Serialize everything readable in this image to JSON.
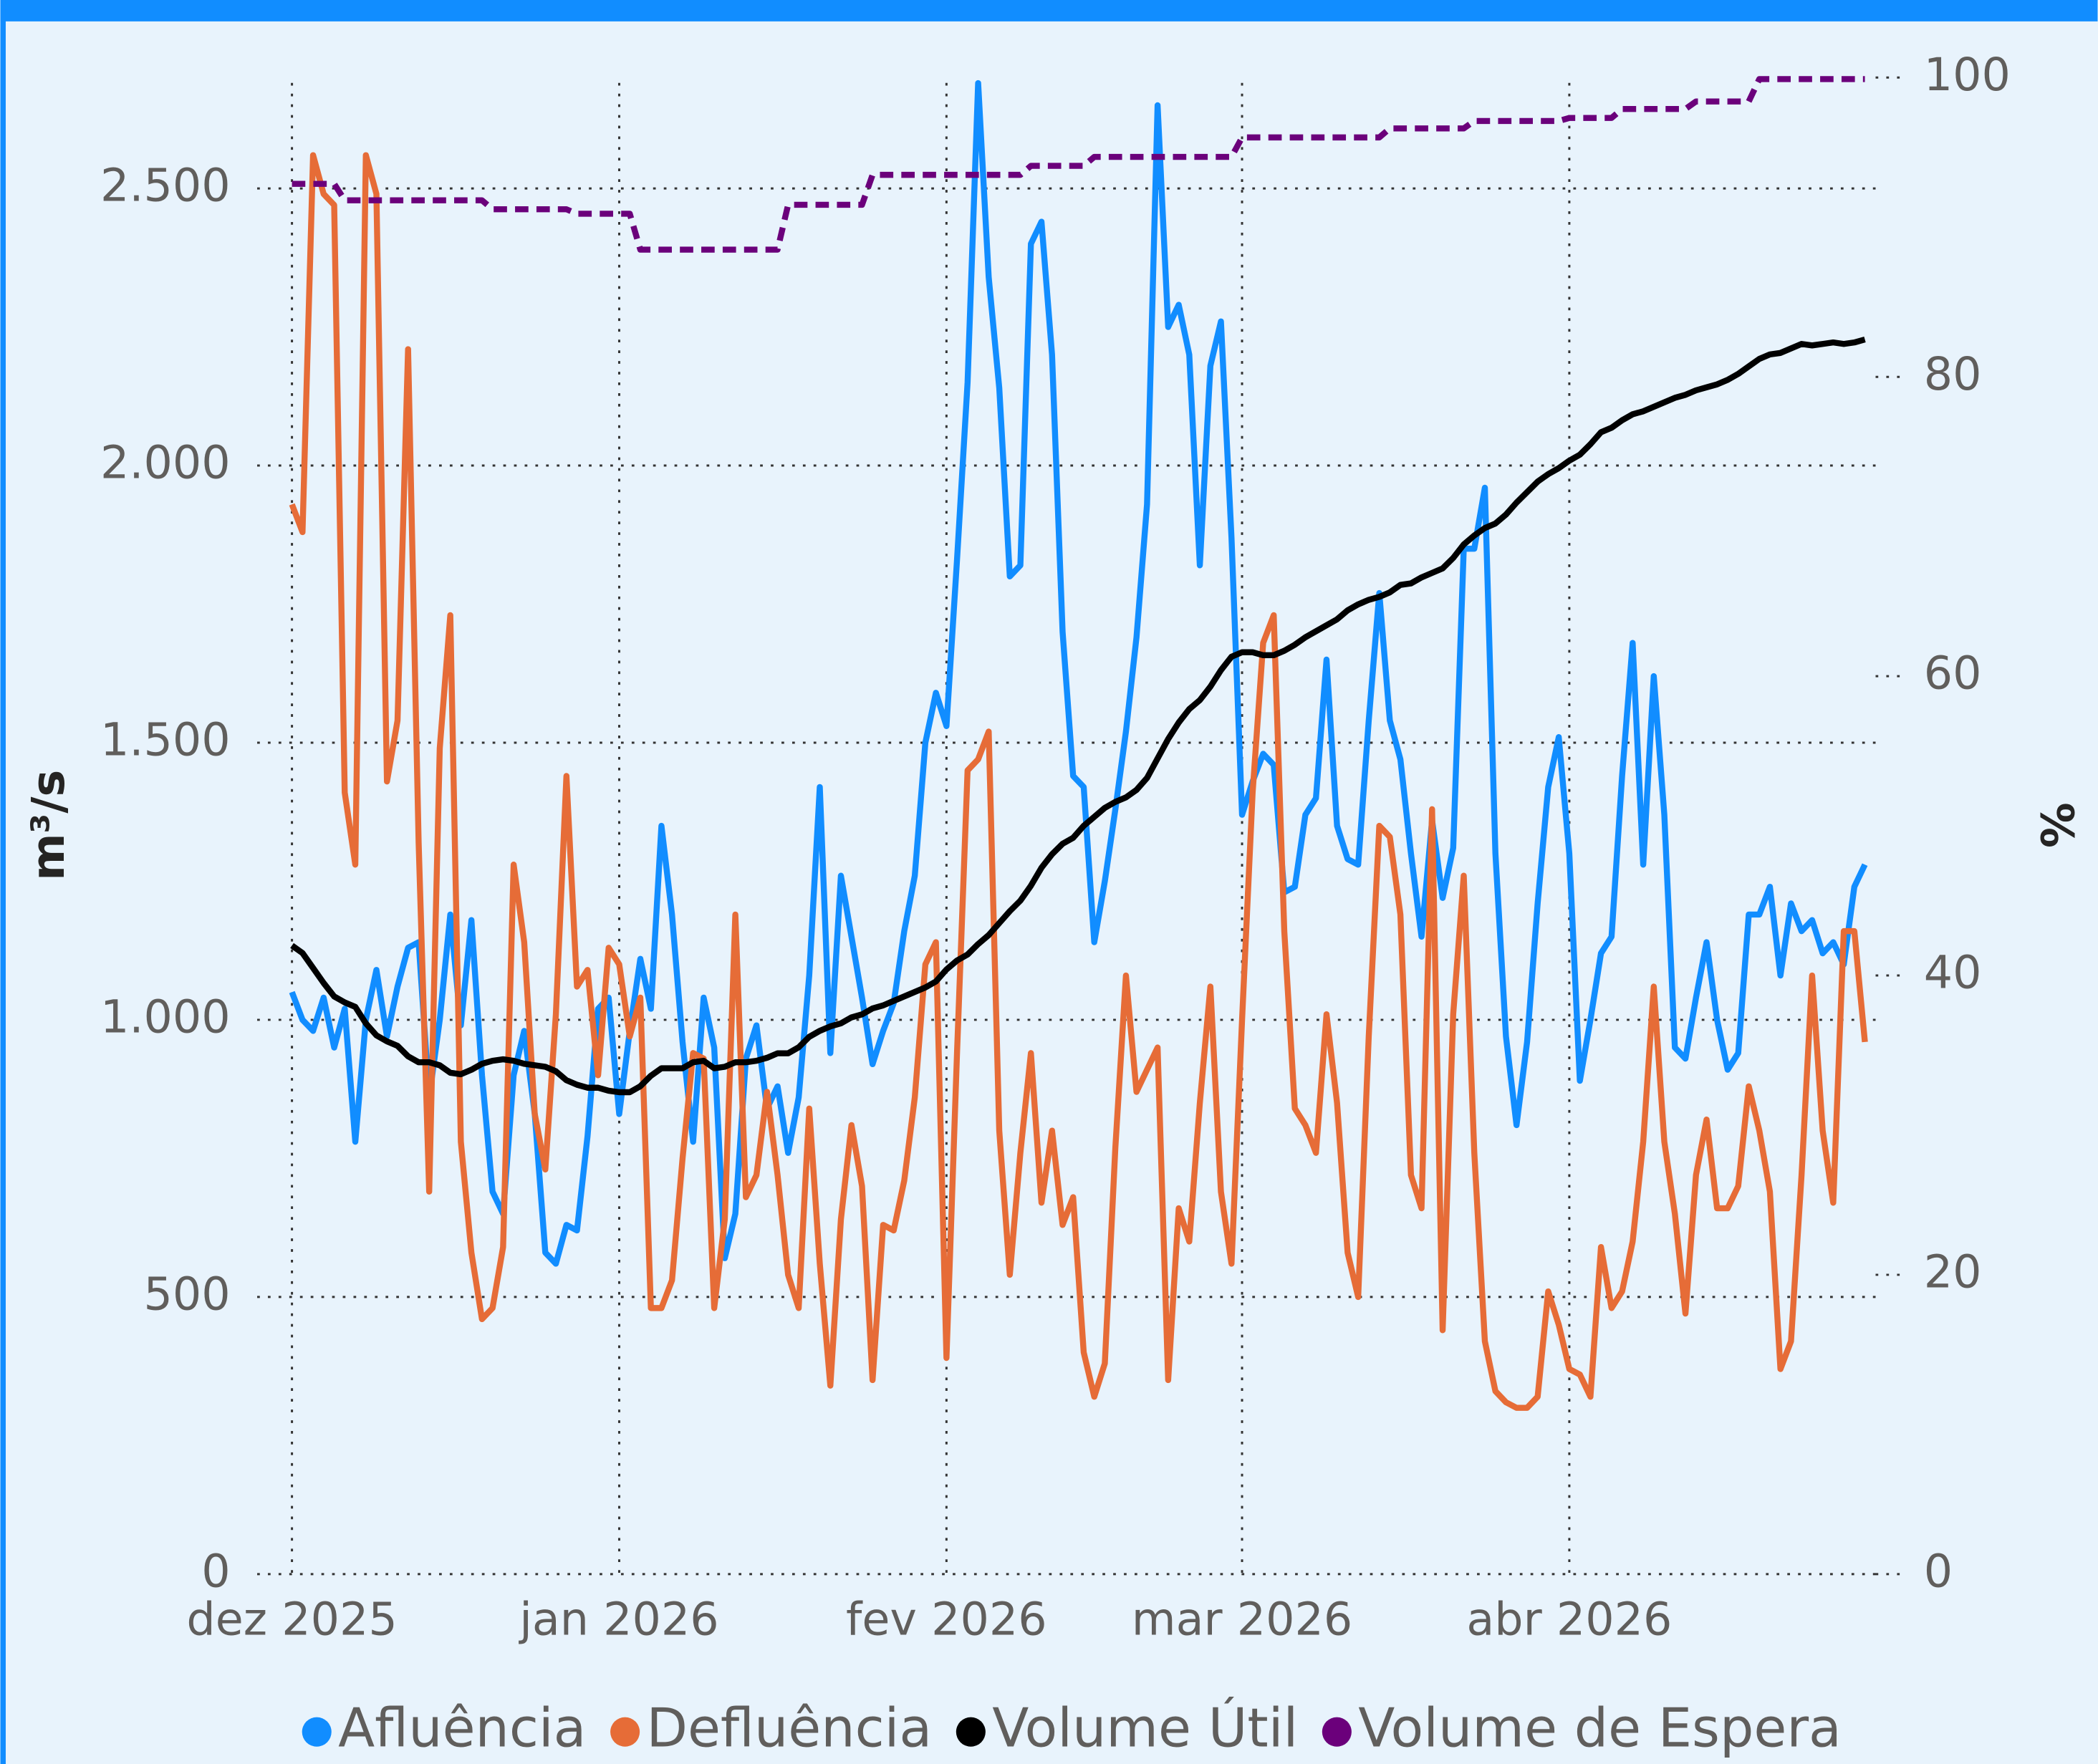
{
  "chart_data": {
    "type": "line",
    "y_label": "m³/s",
    "y2_label": "%",
    "categories": [
      "dez 2025",
      null,
      null,
      null,
      null,
      null,
      null,
      null,
      null,
      null,
      null,
      null,
      null,
      null,
      null,
      null,
      null,
      null,
      null,
      null,
      null,
      null,
      null,
      null,
      null,
      null,
      null,
      null,
      null,
      null,
      null,
      "jan 2026",
      null,
      null,
      null,
      null,
      null,
      null,
      null,
      null,
      null,
      null,
      null,
      null,
      null,
      null,
      null,
      null,
      null,
      null,
      null,
      null,
      null,
      null,
      null,
      null,
      null,
      null,
      null,
      null,
      null,
      null,
      "fev 2026",
      null,
      null,
      null,
      null,
      null,
      null,
      null,
      null,
      null,
      null,
      null,
      null,
      null,
      null,
      null,
      null,
      null,
      null,
      null,
      null,
      null,
      null,
      null,
      null,
      null,
      null,
      null,
      "mar 2026",
      null,
      null,
      null,
      null,
      null,
      null,
      null,
      null,
      null,
      null,
      null,
      null,
      null,
      null,
      null,
      null,
      null,
      null,
      null,
      null,
      null,
      null,
      null,
      null,
      null,
      null,
      null,
      null,
      null,
      null,
      "abr 2026",
      null,
      null,
      null,
      null,
      null,
      null,
      null,
      null,
      null,
      null,
      null,
      null,
      null,
      null,
      null,
      null,
      null,
      null,
      null,
      null,
      null,
      null,
      null,
      null,
      null,
      null,
      null,
      null
    ],
    "series": [
      {
        "name": "Afluência",
        "color": "#118dff",
        "values": [
          1050,
          1000,
          980,
          1040,
          950,
          1020,
          780,
          1000,
          1090,
          970,
          1060,
          1130,
          1140,
          860,
          1000,
          1190,
          990,
          1180,
          900,
          690,
          650,
          900,
          980,
          830,
          580,
          560,
          630,
          620,
          790,
          1020,
          1040,
          830,
          980,
          1110,
          1020,
          1350,
          1190,
          960,
          780,
          1040,
          950,
          570,
          650,
          930,
          990,
          840,
          880,
          760,
          860,
          1080,
          1420,
          940,
          1260,
          1150,
          1040,
          920,
          980,
          1030,
          1160,
          1260,
          1500,
          1590,
          1530,
          1830,
          2150,
          2690,
          2340,
          2140,
          1800,
          1820,
          2400,
          2440,
          2200,
          1700,
          1440,
          1420,
          1140,
          1250,
          1380,
          1520,
          1690,
          1930,
          2650,
          2250,
          2290,
          2200,
          1820,
          2180,
          2260,
          1870,
          1370,
          1430,
          1480,
          1460,
          1230,
          1240,
          1370,
          1400,
          1650,
          1350,
          1290,
          1280,
          1540,
          1770,
          1540,
          1470,
          1300,
          1150,
          1360,
          1220,
          1310,
          1850,
          1850,
          1960,
          1300,
          970,
          810,
          960,
          1210,
          1420,
          1510,
          1300,
          890,
          1000,
          1120,
          1150,
          1440,
          1680,
          1280,
          1620,
          1370,
          950,
          930,
          1040,
          1140,
          1000,
          910,
          940,
          1190,
          1190,
          1240,
          1080,
          1210,
          1160,
          1180,
          1120,
          1140,
          1100,
          1240,
          1280
        ]
      },
      {
        "name": "Defluência",
        "color": "#e66c37",
        "values": [
          1930,
          1880,
          2560,
          2490,
          2470,
          1410,
          1280,
          2560,
          2490,
          1430,
          1540,
          2210,
          1320,
          690,
          1490,
          1730,
          780,
          580,
          460,
          480,
          590,
          1280,
          1140,
          830,
          730,
          1010,
          1440,
          1060,
          1090,
          900,
          1130,
          1100,
          970,
          1040,
          480,
          480,
          530,
          750,
          940,
          930,
          480,
          640,
          1190,
          680,
          720,
          870,
          720,
          540,
          480,
          840,
          560,
          340,
          640,
          810,
          700,
          350,
          630,
          620,
          710,
          860,
          1100,
          1140,
          390,
          940,
          1450,
          1470,
          1520,
          800,
          540,
          760,
          940,
          670,
          800,
          630,
          680,
          400,
          320,
          380,
          770,
          1080,
          870,
          910,
          950,
          350,
          660,
          600,
          850,
          1060,
          690,
          560,
          1000,
          1410,
          1680,
          1730,
          1160,
          840,
          810,
          760,
          1010,
          850,
          580,
          500,
          970,
          1350,
          1330,
          1190,
          720,
          660,
          1380,
          440,
          1010,
          1260,
          760,
          420,
          330,
          310,
          300,
          300,
          320,
          510,
          450,
          370,
          360,
          320,
          590,
          480,
          510,
          600,
          780,
          1060,
          780,
          650,
          470,
          720,
          820,
          660,
          660,
          700,
          880,
          800,
          690,
          370,
          420,
          720,
          1080,
          800,
          670,
          1160,
          1160,
          960
        ]
      },
      {
        "name": "Volume Útil",
        "color": "#000000",
        "axis": "y2",
        "values": [
          42.0,
          41.5,
          40.5,
          39.5,
          38.6,
          38.2,
          37.9,
          36.8,
          36.0,
          35.6,
          35.3,
          34.6,
          34.2,
          34.2,
          34.0,
          33.5,
          33.4,
          33.7,
          34.1,
          34.3,
          34.4,
          34.3,
          34.1,
          34.0,
          33.9,
          33.6,
          33.0,
          32.7,
          32.5,
          32.5,
          32.3,
          32.2,
          32.2,
          32.6,
          33.3,
          33.8,
          33.8,
          33.8,
          34.2,
          34.3,
          33.8,
          33.9,
          34.2,
          34.2,
          34.3,
          34.5,
          34.8,
          34.8,
          35.2,
          35.9,
          36.3,
          36.6,
          36.8,
          37.2,
          37.4,
          37.8,
          38.0,
          38.3,
          38.6,
          38.9,
          39.2,
          39.6,
          40.4,
          41.0,
          41.4,
          42.1,
          42.7,
          43.5,
          44.3,
          45.0,
          46.0,
          47.2,
          48.1,
          48.8,
          49.2,
          50.0,
          50.6,
          51.2,
          51.6,
          51.9,
          52.4,
          53.2,
          54.5,
          55.8,
          56.9,
          57.8,
          58.4,
          59.3,
          60.4,
          61.3,
          61.6,
          61.6,
          61.4,
          61.4,
          61.7,
          62.1,
          62.6,
          63.0,
          63.4,
          63.8,
          64.4,
          64.8,
          65.1,
          65.3,
          65.6,
          66.1,
          66.2,
          66.6,
          66.9,
          67.2,
          67.9,
          68.8,
          69.4,
          69.9,
          70.2,
          70.8,
          71.6,
          72.3,
          73.0,
          73.5,
          73.9,
          74.4,
          74.8,
          75.5,
          76.3,
          76.6,
          77.1,
          77.5,
          77.7,
          78.0,
          78.3,
          78.6,
          78.8,
          79.1,
          79.3,
          79.5,
          79.8,
          80.2,
          80.7,
          81.2,
          81.5,
          81.6,
          81.9,
          82.2,
          82.1,
          82.2,
          82.3,
          82.2,
          82.3,
          82.5
        ]
      },
      {
        "name": "Volume de Espera",
        "color": "#6b007b",
        "axis": "y2",
        "dashed": true,
        "values": [
          92.9,
          92.9,
          92.9,
          92.9,
          92.9,
          91.8,
          91.8,
          91.8,
          91.8,
          91.8,
          91.8,
          91.8,
          91.8,
          91.8,
          91.8,
          91.8,
          91.8,
          91.8,
          91.8,
          91.2,
          91.2,
          91.2,
          91.2,
          91.2,
          91.2,
          91.2,
          91.2,
          90.9,
          90.9,
          90.9,
          90.9,
          90.9,
          90.9,
          88.5,
          88.5,
          88.5,
          88.5,
          88.5,
          88.5,
          88.5,
          88.5,
          88.5,
          88.5,
          88.5,
          88.5,
          88.5,
          88.5,
          91.5,
          91.5,
          91.5,
          91.5,
          91.5,
          91.5,
          91.5,
          91.5,
          93.5,
          93.5,
          93.5,
          93.5,
          93.5,
          93.5,
          93.5,
          93.5,
          93.5,
          93.5,
          93.5,
          93.5,
          93.5,
          93.5,
          93.5,
          94.1,
          94.1,
          94.1,
          94.1,
          94.1,
          94.1,
          94.7,
          94.7,
          94.7,
          94.7,
          94.7,
          94.7,
          94.7,
          94.7,
          94.7,
          94.7,
          94.7,
          94.7,
          94.7,
          94.7,
          96.0,
          96.0,
          96.0,
          96.0,
          96.0,
          96.0,
          96.0,
          96.0,
          96.0,
          96.0,
          96.0,
          96.0,
          96.0,
          96.0,
          96.6,
          96.6,
          96.6,
          96.6,
          96.6,
          96.6,
          96.6,
          96.6,
          97.1,
          97.1,
          97.1,
          97.1,
          97.1,
          97.1,
          97.1,
          97.1,
          97.1,
          97.3,
          97.3,
          97.3,
          97.3,
          97.3,
          97.9,
          97.9,
          97.9,
          97.9,
          97.9,
          97.9,
          97.9,
          98.4,
          98.4,
          98.4,
          98.4,
          98.4,
          98.4,
          99.9,
          99.9,
          99.9,
          99.9,
          99.9,
          99.9,
          99.9,
          99.9,
          99.9,
          99.9,
          99.9
        ]
      }
    ],
    "ylim": [
      0,
      2700
    ],
    "yticks": [
      0,
      {
        "value": 500,
        "label": "500"
      },
      {
        "value": 1000,
        "label": "1.000"
      },
      {
        "value": 1500,
        "label": "1.500"
      },
      {
        "value": 2000,
        "label": "2.000"
      },
      {
        "value": 2500,
        "label": "2.500"
      }
    ],
    "y2lim": [
      0,
      100
    ],
    "y2ticks": [
      0,
      20,
      40,
      60,
      80,
      100
    ],
    "grid": true,
    "legend": "bottom"
  }
}
